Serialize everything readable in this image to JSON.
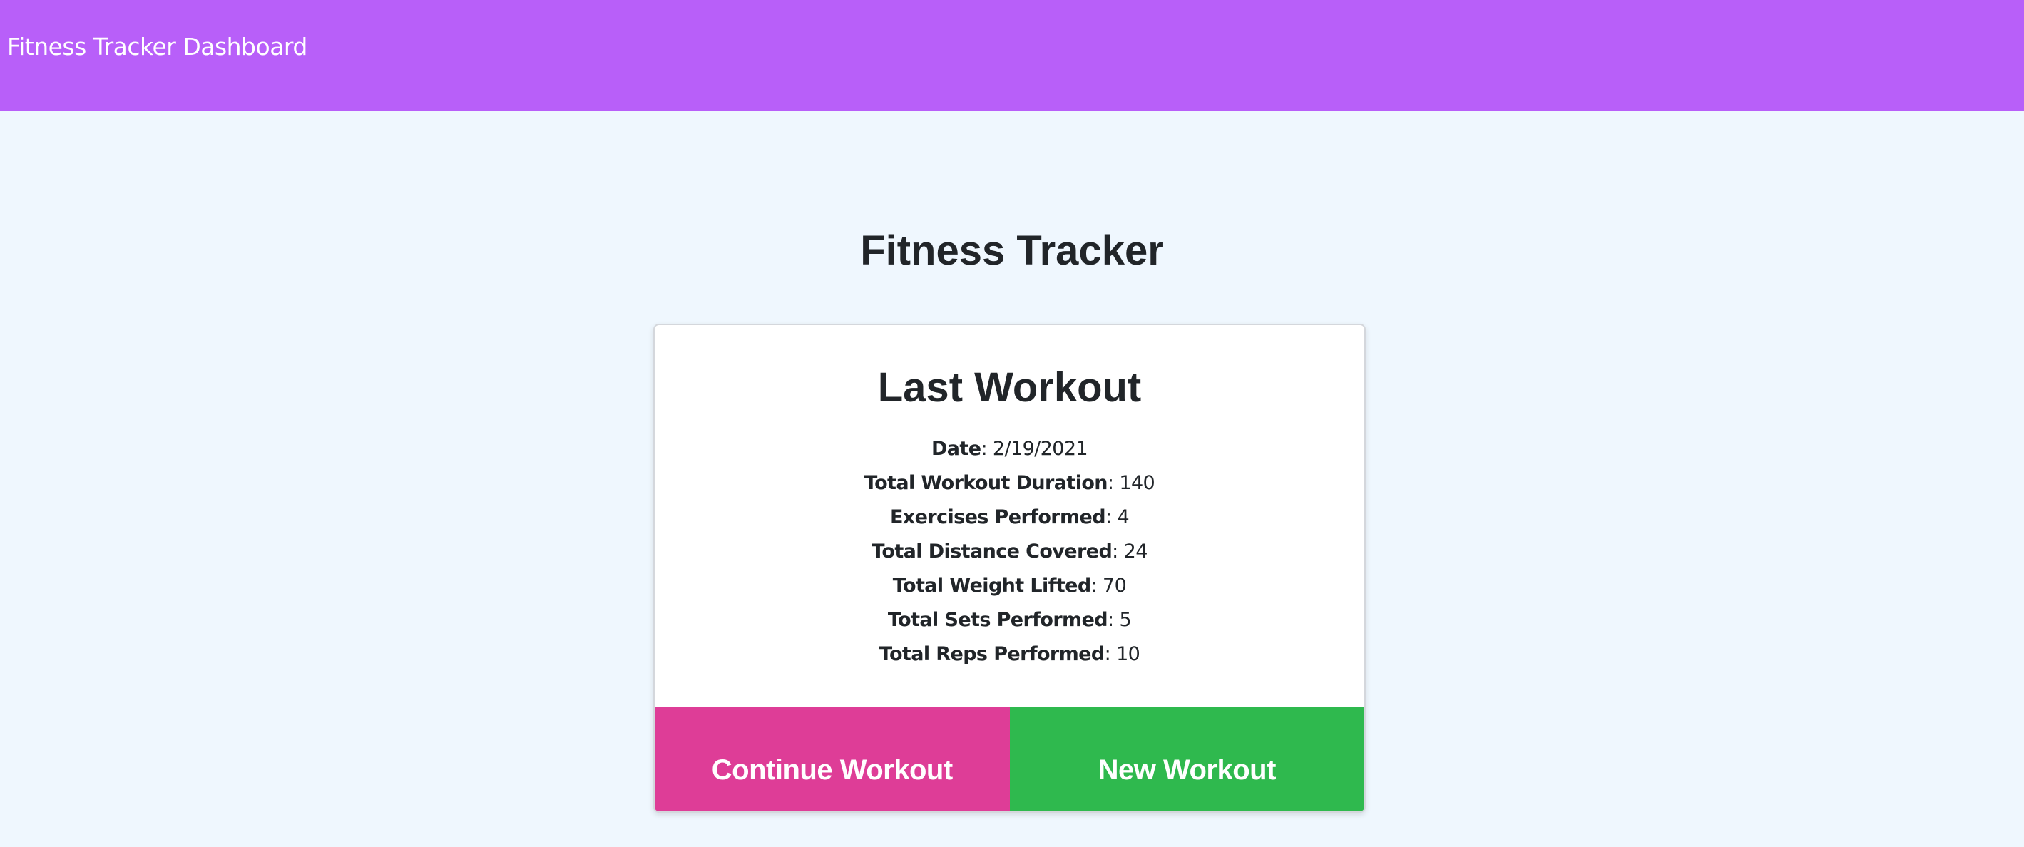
{
  "navbar": {
    "brand": "Fitness Tracker Dashboard"
  },
  "main": {
    "title": "Fitness Tracker",
    "card": {
      "title": "Last Workout",
      "stats": [
        {
          "label": "Date",
          "value": ": 2/19/2021"
        },
        {
          "label": "Total Workout Duration",
          "value": ": 140"
        },
        {
          "label": "Exercises Performed",
          "value": ": 4"
        },
        {
          "label": "Total Distance Covered",
          "value": ": 24"
        },
        {
          "label": "Total Weight Lifted",
          "value": ": 70"
        },
        {
          "label": "Total Sets Performed",
          "value": ": 5"
        },
        {
          "label": "Total Reps Performed",
          "value": ": 10"
        }
      ],
      "continue_label": "Continue Workout",
      "new_label": "New Workout"
    }
  },
  "colors": {
    "navbar": "#b85ff9",
    "background": "#eff7fe",
    "continue": "#de3d97",
    "new": "#2fb94e"
  }
}
